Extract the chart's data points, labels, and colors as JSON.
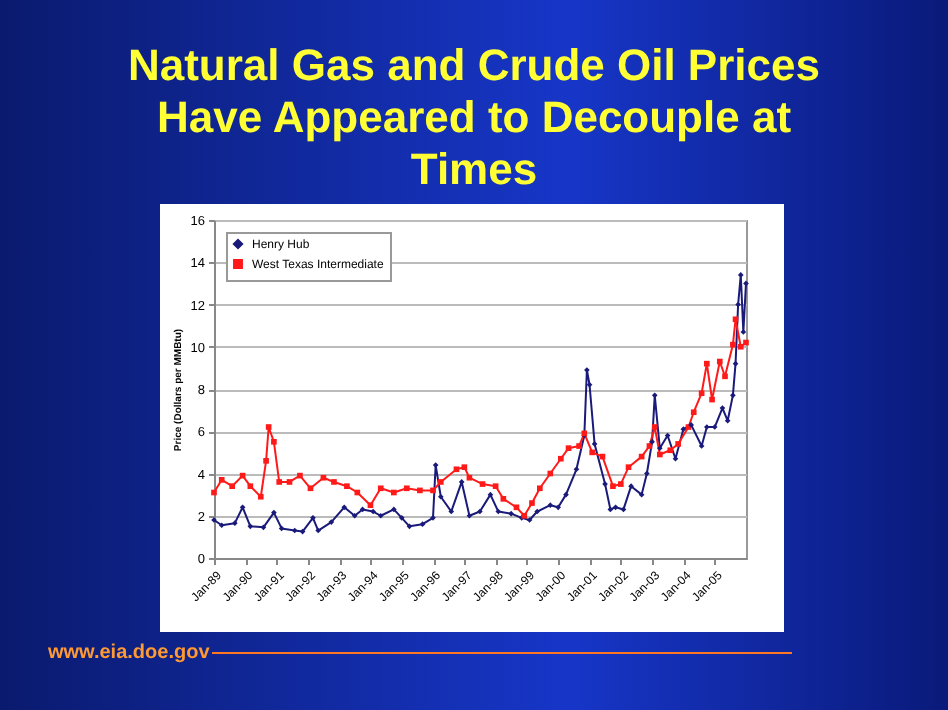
{
  "chart_data": {
    "type": "line",
    "title": "Natural Gas and Crude Oil Prices Have Appeared to Decouple at Times",
    "ylabel": "Price (Dollars per MMBtu)",
    "annotations": [
      "www.eia.doe.gov"
    ],
    "xlim": [
      "1989-01",
      "2006-01"
    ],
    "xticks": [
      {
        "value": "1989-01",
        "label": "Jan-89"
      },
      {
        "value": "1990-01",
        "label": "Jan-90"
      },
      {
        "value": "1991-01",
        "label": "Jan-91"
      },
      {
        "value": "1992-01",
        "label": "Jan-92"
      },
      {
        "value": "1993-01",
        "label": "Jan-93"
      },
      {
        "value": "1994-01",
        "label": "Jan-94"
      },
      {
        "value": "1995-01",
        "label": "Jan-95"
      },
      {
        "value": "1996-01",
        "label": "Jan-96"
      },
      {
        "value": "1997-01",
        "label": "Jan-97"
      },
      {
        "value": "1998-01",
        "label": "Jan-98"
      },
      {
        "value": "1999-01",
        "label": "Jan-99"
      },
      {
        "value": "2000-01",
        "label": "Jan-00"
      },
      {
        "value": "2001-01",
        "label": "Jan-01"
      },
      {
        "value": "2002-01",
        "label": "Jan-02"
      },
      {
        "value": "2003-01",
        "label": "Jan-03"
      },
      {
        "value": "2004-01",
        "label": "Jan-04"
      },
      {
        "value": "2005-01",
        "label": "Jan-05"
      }
    ],
    "ylim": [
      0,
      16
    ],
    "yticks": [
      0,
      2,
      4,
      6,
      8,
      10,
      12,
      14,
      16
    ],
    "grid": "y",
    "legend": "top left",
    "line_style": "solid",
    "series": [
      {
        "name": "Henry Hub",
        "color": "#1a1a7a",
        "marker": "diamond",
        "x": [
          "1989-01",
          "1989-04",
          "1989-09",
          "1989-12",
          "1990-03",
          "1990-08",
          "1990-12",
          "1991-03",
          "1991-08",
          "1991-11",
          "1992-03",
          "1992-05",
          "1992-10",
          "1993-03",
          "1993-07",
          "1993-10",
          "1994-02",
          "1994-05",
          "1994-10",
          "1995-01",
          "1995-04",
          "1995-09",
          "1996-01",
          "1996-02",
          "1996-04",
          "1996-08",
          "1996-12",
          "1997-03",
          "1997-07",
          "1997-11",
          "1998-02",
          "1998-07",
          "1998-11",
          "1999-02",
          "1999-05",
          "1999-10",
          "2000-01",
          "2000-04",
          "2000-08",
          "2000-11",
          "2000-12",
          "2001-01",
          "2001-03",
          "2001-07",
          "2001-09",
          "2001-11",
          "2002-02",
          "2002-05",
          "2002-09",
          "2002-11",
          "2003-01",
          "2003-02",
          "2003-04",
          "2003-07",
          "2003-10",
          "2004-01",
          "2004-04",
          "2004-08",
          "2004-10",
          "2005-01",
          "2005-04",
          "2005-06",
          "2005-08",
          "2005-09",
          "2005-10",
          "2005-11",
          "2005-12",
          "2006-01"
        ],
        "values": [
          1.8,
          1.55,
          1.65,
          2.4,
          1.5,
          1.45,
          2.15,
          1.4,
          1.3,
          1.25,
          1.9,
          1.3,
          1.7,
          2.4,
          2.0,
          2.3,
          2.2,
          2.0,
          2.3,
          1.9,
          1.5,
          1.6,
          1.9,
          4.4,
          2.9,
          2.2,
          3.6,
          2.0,
          2.2,
          3.0,
          2.2,
          2.1,
          1.9,
          1.8,
          2.2,
          2.5,
          2.4,
          3.0,
          4.2,
          5.8,
          8.9,
          8.2,
          5.4,
          3.5,
          2.3,
          2.4,
          2.3,
          3.4,
          3.0,
          4.0,
          5.5,
          7.7,
          5.2,
          5.8,
          4.7,
          6.1,
          6.3,
          5.3,
          6.2,
          6.2,
          7.1,
          6.5,
          7.7,
          9.2,
          12.0,
          13.4,
          10.7,
          13.0
        ]
      },
      {
        "name": "West Texas Intermediate",
        "color": "#ff1a1a",
        "marker": "square",
        "x": [
          "1989-01",
          "1989-04",
          "1989-08",
          "1989-12",
          "1990-03",
          "1990-07",
          "1990-09",
          "1990-10",
          "1990-12",
          "1991-02",
          "1991-06",
          "1991-10",
          "1992-02",
          "1992-07",
          "1992-11",
          "1993-04",
          "1993-08",
          "1994-01",
          "1994-05",
          "1994-10",
          "1995-03",
          "1995-08",
          "1996-01",
          "1996-04",
          "1996-10",
          "1997-01",
          "1997-03",
          "1997-08",
          "1998-01",
          "1998-04",
          "1998-09",
          "1998-12",
          "1999-03",
          "1999-06",
          "1999-10",
          "2000-02",
          "2000-05",
          "2000-09",
          "2000-11",
          "2001-02",
          "2001-06",
          "2001-10",
          "2002-01",
          "2002-04",
          "2002-09",
          "2002-12",
          "2003-02",
          "2003-04",
          "2003-08",
          "2003-11",
          "2004-03",
          "2004-05",
          "2004-08",
          "2004-10",
          "2004-12",
          "2005-03",
          "2005-05",
          "2005-08",
          "2005-09",
          "2005-11",
          "2006-01"
        ],
        "values": [
          3.1,
          3.7,
          3.4,
          3.9,
          3.4,
          2.9,
          4.6,
          6.2,
          5.5,
          3.6,
          3.6,
          3.9,
          3.3,
          3.8,
          3.6,
          3.4,
          3.1,
          2.5,
          3.3,
          3.1,
          3.3,
          3.2,
          3.2,
          3.6,
          4.2,
          4.3,
          3.8,
          3.5,
          3.4,
          2.8,
          2.4,
          2.0,
          2.6,
          3.3,
          4.0,
          4.7,
          5.2,
          5.3,
          5.9,
          5.0,
          4.8,
          3.4,
          3.5,
          4.3,
          4.8,
          5.3,
          6.2,
          4.9,
          5.1,
          5.4,
          6.2,
          6.9,
          7.8,
          9.2,
          7.5,
          9.3,
          8.6,
          10.1,
          11.3,
          10.0,
          10.2
        ]
      }
    ]
  }
}
